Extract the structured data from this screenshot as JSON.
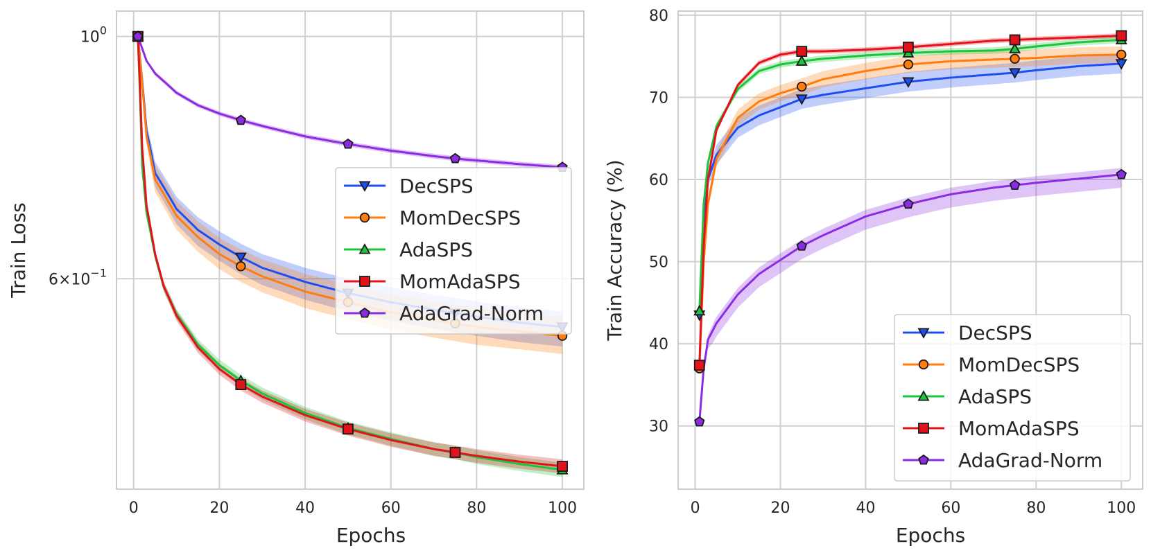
{
  "colors": {
    "DecSPS": "#1f4ef0",
    "MomDecSPS": "#ff7c0e",
    "AdaSPS": "#1bc43a",
    "MomAdaSPS": "#e3121b",
    "AdaGrad-Norm": "#8b2be2",
    "grid": "#d0d0d0",
    "frame": "#cccccc",
    "text": "#262626"
  },
  "chart_data": [
    {
      "type": "line",
      "title": "",
      "xlabel": "Epochs",
      "ylabel": "Train Loss",
      "yscale": "log",
      "xlim": [
        -4,
        105
      ],
      "ylim": [
        0.385,
        1.055
      ],
      "xticks": [
        0,
        20,
        40,
        60,
        80,
        100
      ],
      "yticks": [
        {
          "value": 1.0,
          "base": "10",
          "exp": "0"
        },
        {
          "value": 0.6,
          "mant": "6",
          "base": "10",
          "exp": "−1"
        }
      ],
      "grid": true,
      "legend_position": "center-right",
      "series": [
        {
          "name": "DecSPS",
          "marker": "triangle-down",
          "points": [
            [
              1,
              1.0
            ],
            [
              3,
              0.82
            ],
            [
              5,
              0.75
            ],
            [
              10,
              0.695
            ],
            [
              15,
              0.665
            ],
            [
              20,
              0.645
            ],
            [
              25,
              0.628
            ],
            [
              30,
              0.614
            ],
            [
              40,
              0.596
            ],
            [
              50,
              0.582
            ],
            [
              60,
              0.571
            ],
            [
              70,
              0.562
            ],
            [
              75,
              0.558
            ],
            [
              80,
              0.554
            ],
            [
              90,
              0.547
            ],
            [
              100,
              0.542
            ]
          ],
          "band": [
            0.022,
            0.018
          ],
          "marker_x": [
            1,
            25,
            50,
            75,
            100
          ]
        },
        {
          "name": "MomDecSPS",
          "marker": "circle",
          "points": [
            [
              1,
              1.0
            ],
            [
              3,
              0.81
            ],
            [
              5,
              0.74
            ],
            [
              10,
              0.685
            ],
            [
              15,
              0.655
            ],
            [
              20,
              0.632
            ],
            [
              25,
              0.616
            ],
            [
              30,
              0.603
            ],
            [
              40,
              0.584
            ],
            [
              50,
              0.571
            ],
            [
              60,
              0.559
            ],
            [
              70,
              0.55
            ],
            [
              75,
              0.546
            ],
            [
              80,
              0.542
            ],
            [
              90,
              0.537
            ],
            [
              100,
              0.532
            ]
          ],
          "band": [
            0.02,
            0.022
          ],
          "marker_x": [
            1,
            25,
            50,
            75,
            100
          ]
        },
        {
          "name": "AdaSPS",
          "marker": "triangle-up",
          "points": [
            [
              1,
              1.0
            ],
            [
              2,
              0.76
            ],
            [
              3,
              0.69
            ],
            [
              5,
              0.63
            ],
            [
              7,
              0.59
            ],
            [
              10,
              0.557
            ],
            [
              15,
              0.522
            ],
            [
              20,
              0.5
            ],
            [
              25,
              0.484
            ],
            [
              30,
              0.471
            ],
            [
              40,
              0.452
            ],
            [
              50,
              0.438
            ],
            [
              60,
              0.428
            ],
            [
              70,
              0.419
            ],
            [
              75,
              0.416
            ],
            [
              80,
              0.412
            ],
            [
              90,
              0.406
            ],
            [
              100,
              0.401
            ]
          ],
          "band": [
            0.006,
            0.006
          ],
          "marker_x": [
            1,
            25,
            50,
            75,
            100
          ]
        },
        {
          "name": "MomAdaSPS",
          "marker": "square",
          "points": [
            [
              1,
              1.0
            ],
            [
              2,
              0.79
            ],
            [
              3,
              0.7
            ],
            [
              5,
              0.632
            ],
            [
              7,
              0.591
            ],
            [
              10,
              0.555
            ],
            [
              15,
              0.519
            ],
            [
              20,
              0.496
            ],
            [
              25,
              0.48
            ],
            [
              30,
              0.468
            ],
            [
              40,
              0.45
            ],
            [
              50,
              0.437
            ],
            [
              60,
              0.427
            ],
            [
              70,
              0.419
            ],
            [
              75,
              0.416
            ],
            [
              80,
              0.413
            ],
            [
              90,
              0.408
            ],
            [
              100,
              0.404
            ]
          ],
          "band": [
            0.006,
            0.006
          ],
          "marker_x": [
            1,
            25,
            50,
            75,
            100
          ]
        },
        {
          "name": "AdaGrad-Norm",
          "marker": "pentagon",
          "points": [
            [
              1,
              1.0
            ],
            [
              3,
              0.95
            ],
            [
              5,
              0.925
            ],
            [
              10,
              0.888
            ],
            [
              15,
              0.865
            ],
            [
              20,
              0.85
            ],
            [
              25,
              0.838
            ],
            [
              30,
              0.828
            ],
            [
              40,
              0.81
            ],
            [
              50,
              0.797
            ],
            [
              60,
              0.786
            ],
            [
              70,
              0.777
            ],
            [
              75,
              0.773
            ],
            [
              80,
              0.77
            ],
            [
              90,
              0.764
            ],
            [
              100,
              0.759
            ]
          ],
          "band": [
            0.004,
            0.004
          ],
          "marker_x": [
            1,
            25,
            50,
            75,
            100
          ]
        }
      ]
    },
    {
      "type": "line",
      "title": "",
      "xlabel": "Epochs",
      "ylabel": "Train Accuracy (%)",
      "yscale": "linear",
      "xlim": [
        -4,
        105
      ],
      "ylim": [
        22.3,
        80.5
      ],
      "xticks": [
        0,
        20,
        40,
        60,
        80,
        100
      ],
      "yticks": [
        30,
        40,
        50,
        60,
        70,
        80
      ],
      "grid": true,
      "legend_position": "lower-right",
      "series": [
        {
          "name": "DecSPS",
          "marker": "triangle-down",
          "points": [
            [
              1,
              43.5
            ],
            [
              2,
              55
            ],
            [
              3,
              60
            ],
            [
              5,
              63
            ],
            [
              10,
              66.3
            ],
            [
              15,
              67.8
            ],
            [
              20,
              68.8
            ],
            [
              25,
              69.8
            ],
            [
              30,
              70.3
            ],
            [
              40,
              71.1
            ],
            [
              50,
              71.9
            ],
            [
              60,
              72.4
            ],
            [
              70,
              72.8
            ],
            [
              75,
              73.0
            ],
            [
              80,
              73.3
            ],
            [
              90,
              73.8
            ],
            [
              100,
              74.1
            ]
          ],
          "band": [
            1.2,
            1.2
          ],
          "marker_x": [
            1,
            25,
            50,
            75,
            100
          ]
        },
        {
          "name": "MomDecSPS",
          "marker": "circle",
          "points": [
            [
              1,
              37.0
            ],
            [
              2,
              50
            ],
            [
              3,
              57
            ],
            [
              5,
              62.5
            ],
            [
              10,
              67.5
            ],
            [
              15,
              69.5
            ],
            [
              20,
              70.5
            ],
            [
              25,
              71.3
            ],
            [
              30,
              72.2
            ],
            [
              40,
              73.2
            ],
            [
              50,
              74.0
            ],
            [
              60,
              74.4
            ],
            [
              70,
              74.6
            ],
            [
              75,
              74.7
            ],
            [
              80,
              74.8
            ],
            [
              90,
              75.1
            ],
            [
              100,
              75.2
            ]
          ],
          "band": [
            1.0,
            1.0
          ],
          "marker_x": [
            1,
            25,
            50,
            75,
            100
          ]
        },
        {
          "name": "AdaSPS",
          "marker": "triangle-up",
          "points": [
            [
              1,
              44.0
            ],
            [
              2,
              57
            ],
            [
              3,
              62
            ],
            [
              5,
              66.5
            ],
            [
              10,
              71
            ],
            [
              15,
              73.2
            ],
            [
              20,
              74.0
            ],
            [
              25,
              74.4
            ],
            [
              30,
              74.7
            ],
            [
              40,
              75.1
            ],
            [
              50,
              75.4
            ],
            [
              60,
              75.6
            ],
            [
              70,
              75.7
            ],
            [
              75,
              75.9
            ],
            [
              80,
              76.2
            ],
            [
              90,
              76.7
            ],
            [
              100,
              77.0
            ]
          ],
          "band": [
            0.4,
            0.4
          ],
          "marker_x": [
            1,
            25,
            50,
            75,
            100
          ]
        },
        {
          "name": "MomAdaSPS",
          "marker": "square",
          "points": [
            [
              1,
              37.4
            ],
            [
              2,
              52
            ],
            [
              3,
              60
            ],
            [
              5,
              66
            ],
            [
              10,
              71.5
            ],
            [
              15,
              74.2
            ],
            [
              20,
              75.2
            ],
            [
              25,
              75.6
            ],
            [
              30,
              75.6
            ],
            [
              40,
              75.8
            ],
            [
              50,
              76.1
            ],
            [
              60,
              76.5
            ],
            [
              70,
              76.9
            ],
            [
              75,
              77.0
            ],
            [
              80,
              77.1
            ],
            [
              90,
              77.3
            ],
            [
              100,
              77.5
            ]
          ],
          "band": [
            0.3,
            0.3
          ],
          "marker_x": [
            1,
            25,
            50,
            75,
            100
          ]
        },
        {
          "name": "AdaGrad-Norm",
          "marker": "pentagon",
          "points": [
            [
              1,
              30.5
            ],
            [
              2,
              37
            ],
            [
              3,
              40.5
            ],
            [
              5,
              42.5
            ],
            [
              10,
              46
            ],
            [
              15,
              48.5
            ],
            [
              20,
              50.2
            ],
            [
              25,
              51.9
            ],
            [
              30,
              53.2
            ],
            [
              40,
              55.5
            ],
            [
              50,
              57.0
            ],
            [
              60,
              58.2
            ],
            [
              70,
              59.0
            ],
            [
              75,
              59.3
            ],
            [
              80,
              59.6
            ],
            [
              90,
              60.1
            ],
            [
              100,
              60.6
            ]
          ],
          "band": [
            1.6,
            0.8
          ],
          "marker_x": [
            1,
            25,
            50,
            75,
            100
          ]
        }
      ]
    }
  ]
}
